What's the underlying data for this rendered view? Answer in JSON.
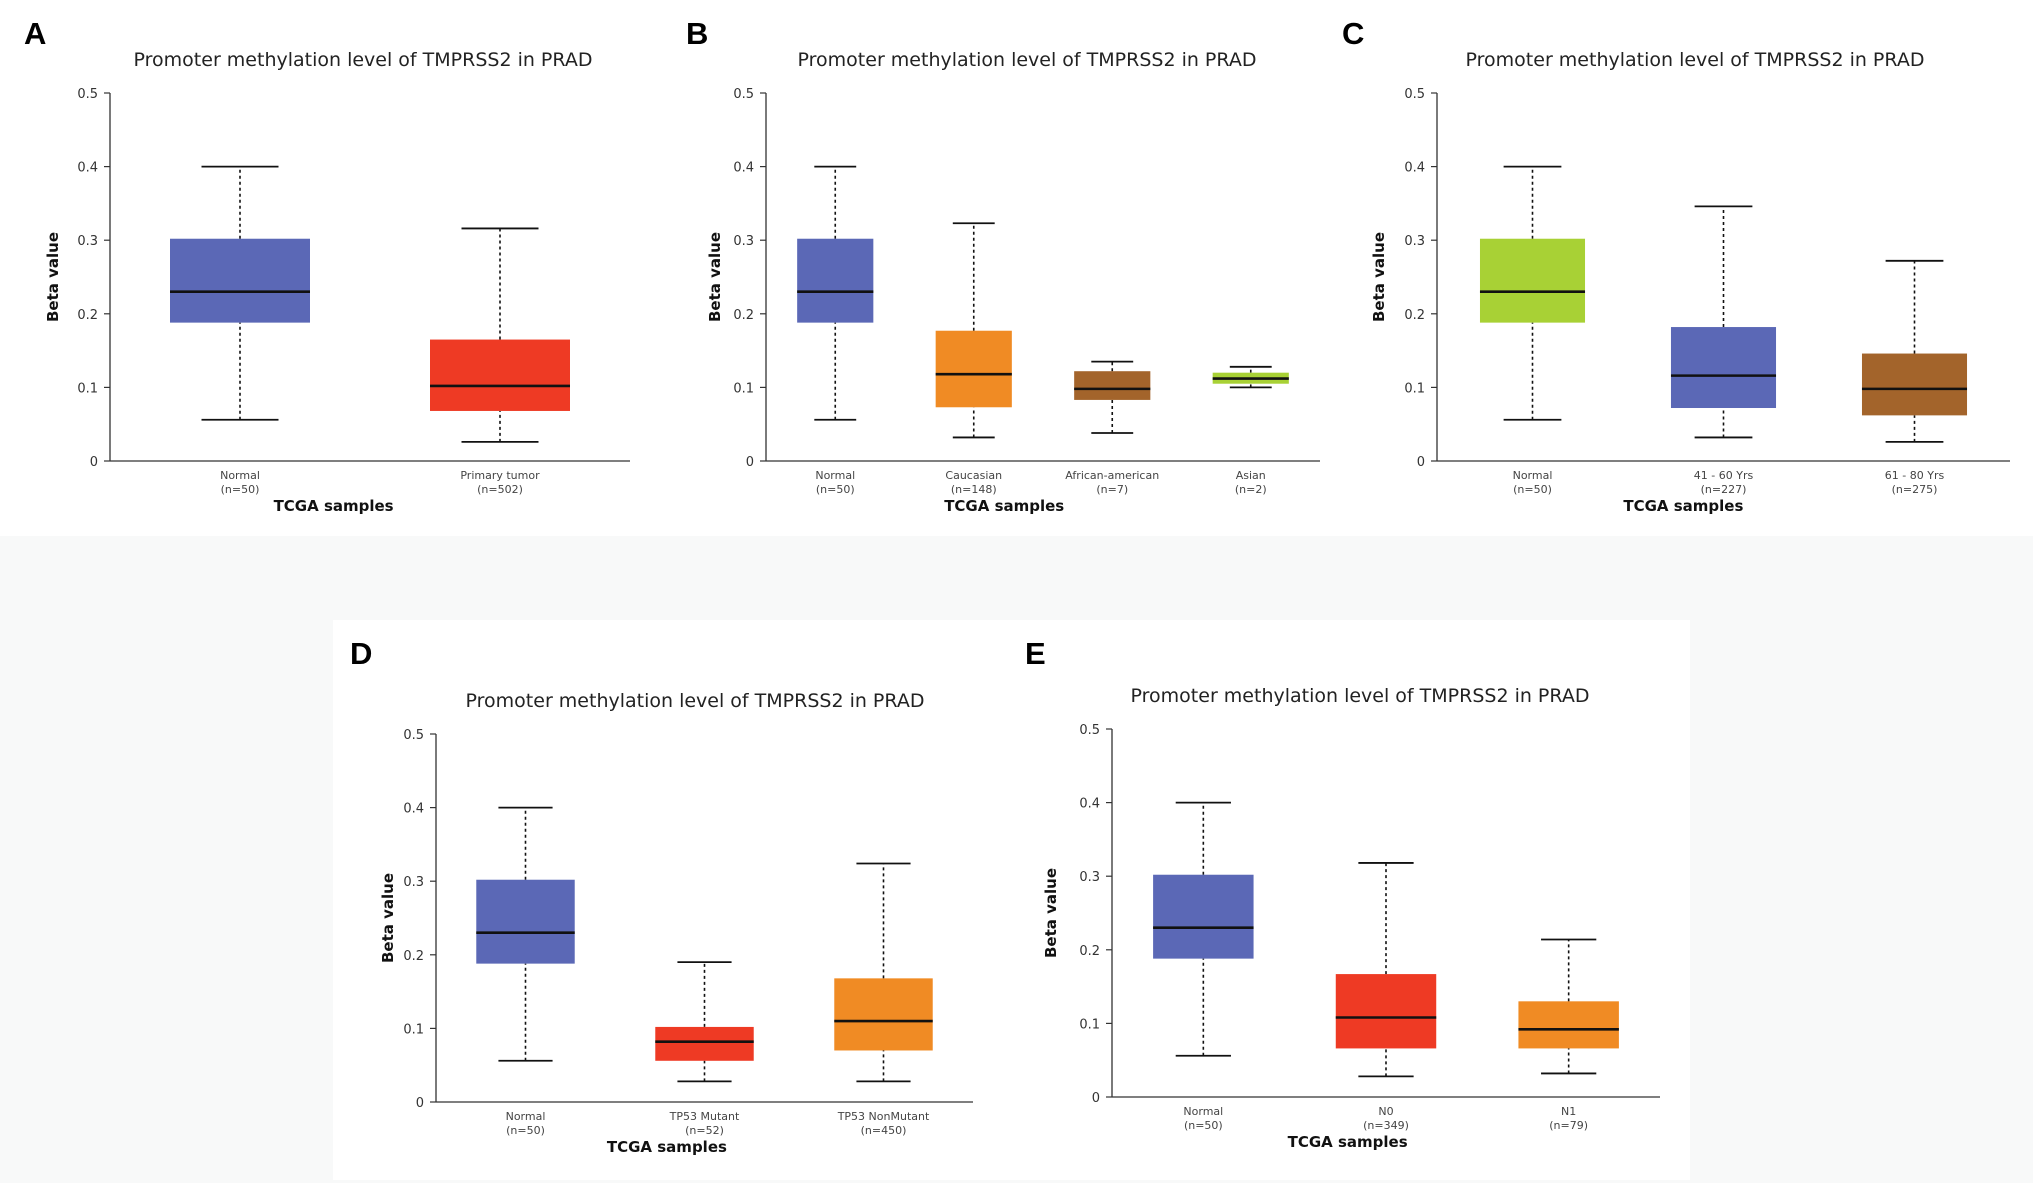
{
  "panels": [
    {
      "letter": "A"
    },
    {
      "letter": "B"
    },
    {
      "letter": "C"
    },
    {
      "letter": "D"
    },
    {
      "letter": "E"
    }
  ],
  "chart_data": [
    {
      "type": "boxplot",
      "panel": "A",
      "title": "Promoter methylation level of TMPRSS2 in PRAD",
      "xlabel": "TCGA samples",
      "ylabel": "Beta value",
      "ylim": [
        0,
        0.5
      ],
      "yticks": [
        0,
        0.1,
        0.2,
        0.3,
        0.4,
        0.5
      ],
      "categories": [
        {
          "label": "Normal",
          "n": "(n=50)",
          "min": 0.056,
          "q1": 0.188,
          "median": 0.23,
          "q3": 0.302,
          "max": 0.4,
          "color": "#5b68b6"
        },
        {
          "label": "Primary tumor",
          "n": "(n=502)",
          "min": 0.026,
          "q1": 0.068,
          "median": 0.102,
          "q3": 0.165,
          "max": 0.316,
          "color": "#ee3a24"
        }
      ]
    },
    {
      "type": "boxplot",
      "panel": "B",
      "title": "Promoter methylation level of TMPRSS2 in PRAD",
      "xlabel": "TCGA samples",
      "ylabel": "Beta value",
      "ylim": [
        0,
        0.5
      ],
      "yticks": [
        0,
        0.1,
        0.2,
        0.3,
        0.4,
        0.5
      ],
      "categories": [
        {
          "label": "Normal",
          "n": "(n=50)",
          "min": 0.056,
          "q1": 0.188,
          "median": 0.23,
          "q3": 0.302,
          "max": 0.4,
          "color": "#5b68b6"
        },
        {
          "label": "Caucasian",
          "n": "(n=148)",
          "min": 0.032,
          "q1": 0.073,
          "median": 0.118,
          "q3": 0.177,
          "max": 0.323,
          "color": "#f08b24"
        },
        {
          "label": "African-american",
          "n": "(n=7)",
          "min": 0.038,
          "q1": 0.083,
          "median": 0.098,
          "q3": 0.122,
          "max": 0.135,
          "color": "#a3642b"
        },
        {
          "label": "Asian",
          "n": "(n=2)",
          "min": 0.1,
          "q1": 0.105,
          "median": 0.112,
          "q3": 0.12,
          "max": 0.128,
          "color": "#a8d135"
        }
      ]
    },
    {
      "type": "boxplot",
      "panel": "C",
      "title": "Promoter methylation level of TMPRSS2 in PRAD",
      "xlabel": "TCGA samples",
      "ylabel": "Beta value",
      "ylim": [
        0,
        0.5
      ],
      "yticks": [
        0,
        0.1,
        0.2,
        0.3,
        0.4,
        0.5
      ],
      "categories": [
        {
          "label": "Normal",
          "n": "(n=50)",
          "min": 0.056,
          "q1": 0.188,
          "median": 0.23,
          "q3": 0.302,
          "max": 0.4,
          "color": "#a8d135"
        },
        {
          "label": "41 - 60 Yrs",
          "n": "(n=227)",
          "min": 0.032,
          "q1": 0.072,
          "median": 0.116,
          "q3": 0.182,
          "max": 0.346,
          "color": "#5b68b6"
        },
        {
          "label": "61 - 80 Yrs",
          "n": "(n=275)",
          "min": 0.026,
          "q1": 0.062,
          "median": 0.098,
          "q3": 0.146,
          "max": 0.272,
          "color": "#a3642b"
        }
      ]
    },
    {
      "type": "boxplot",
      "panel": "D",
      "title": "Promoter methylation level of TMPRSS2 in PRAD",
      "xlabel": "TCGA samples",
      "ylabel": "Beta value",
      "ylim": [
        0,
        0.5
      ],
      "yticks": [
        0,
        0.1,
        0.2,
        0.3,
        0.4,
        0.5
      ],
      "categories": [
        {
          "label": "Normal",
          "n": "(n=50)",
          "min": 0.056,
          "q1": 0.188,
          "median": 0.23,
          "q3": 0.302,
          "max": 0.4,
          "color": "#5b68b6"
        },
        {
          "label": "TP53 Mutant",
          "n": "(n=52)",
          "min": 0.028,
          "q1": 0.056,
          "median": 0.082,
          "q3": 0.102,
          "max": 0.19,
          "color": "#ee3a24"
        },
        {
          "label": "TP53 NonMutant",
          "n": "(n=450)",
          "min": 0.028,
          "q1": 0.07,
          "median": 0.11,
          "q3": 0.168,
          "max": 0.324,
          "color": "#f08b24"
        }
      ]
    },
    {
      "type": "boxplot",
      "panel": "E",
      "title": "Promoter methylation level of TMPRSS2 in PRAD",
      "xlabel": "TCGA samples",
      "ylabel": "Beta value",
      "ylim": [
        0,
        0.5
      ],
      "yticks": [
        0,
        0.1,
        0.2,
        0.3,
        0.4,
        0.5
      ],
      "categories": [
        {
          "label": "Normal",
          "n": "(n=50)",
          "min": 0.056,
          "q1": 0.188,
          "median": 0.23,
          "q3": 0.302,
          "max": 0.4,
          "color": "#5b68b6"
        },
        {
          "label": "N0",
          "n": "(n=349)",
          "min": 0.028,
          "q1": 0.066,
          "median": 0.108,
          "q3": 0.167,
          "max": 0.318,
          "color": "#ee3a24"
        },
        {
          "label": "N1",
          "n": "(n=79)",
          "min": 0.032,
          "q1": 0.066,
          "median": 0.092,
          "q3": 0.13,
          "max": 0.214,
          "color": "#f08b24"
        }
      ]
    }
  ]
}
